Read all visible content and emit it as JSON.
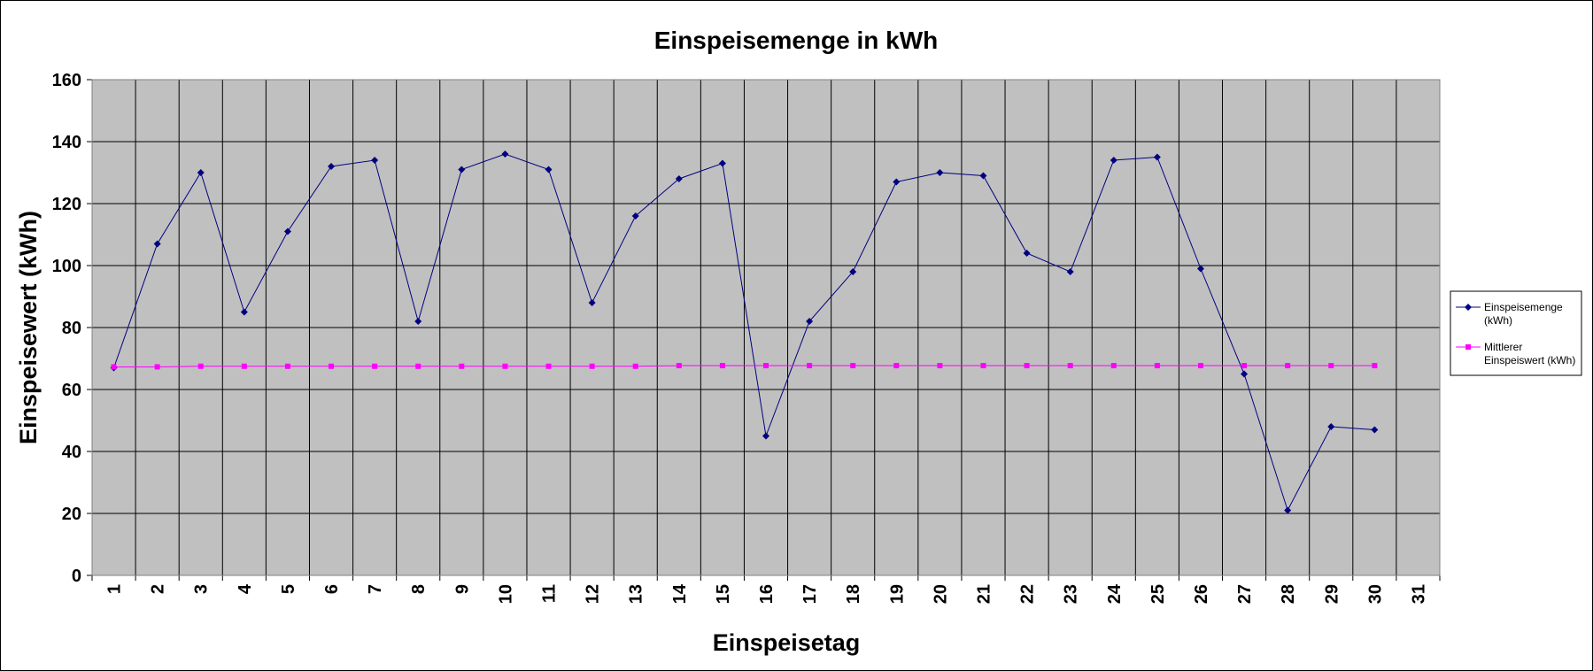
{
  "chart_data": {
    "type": "line",
    "title": "Einspeisemenge in kWh",
    "xlabel": "Einspeisetag",
    "ylabel": "Einspeisewert  (kWh)",
    "categories": [
      "1",
      "2",
      "3",
      "4",
      "5",
      "6",
      "7",
      "8",
      "9",
      "10",
      "11",
      "12",
      "13",
      "14",
      "15",
      "16",
      "17",
      "18",
      "19",
      "20",
      "21",
      "22",
      "23",
      "24",
      "25",
      "26",
      "27",
      "28",
      "29",
      "30",
      "31"
    ],
    "ylim": [
      0,
      160
    ],
    "yticks": [
      "0",
      "20",
      "40",
      "60",
      "80",
      "100",
      "120",
      "140",
      "160"
    ],
    "grid": true,
    "legend_position": "right",
    "series": [
      {
        "name": "Einspeisemenge (kWh)",
        "legend_lines": [
          "Einspeisemenge",
          "(kWh)"
        ],
        "color": "#000080",
        "marker": "diamond",
        "values": [
          67,
          107,
          130,
          85,
          111,
          132,
          134,
          82,
          131,
          136,
          131,
          88,
          116,
          128,
          133,
          45,
          82,
          98,
          127,
          130,
          129,
          104,
          98,
          134,
          135,
          99,
          65,
          21,
          48,
          47,
          null
        ]
      },
      {
        "name": "Mittlerer Einspeiswert (kWh)",
        "legend_lines": [
          "Mittlerer",
          "Einspeiswert (kWh)"
        ],
        "color": "#ff00ff",
        "marker": "square",
        "values": [
          67.3,
          67.3,
          67.5,
          67.5,
          67.5,
          67.5,
          67.5,
          67.5,
          67.5,
          67.5,
          67.5,
          67.5,
          67.5,
          67.7,
          67.7,
          67.7,
          67.7,
          67.7,
          67.7,
          67.7,
          67.7,
          67.7,
          67.7,
          67.7,
          67.7,
          67.7,
          67.7,
          67.7,
          67.7,
          67.7,
          null
        ]
      }
    ],
    "colors": {
      "plot_background": "#c0c0c0",
      "grid": "#000000"
    }
  }
}
